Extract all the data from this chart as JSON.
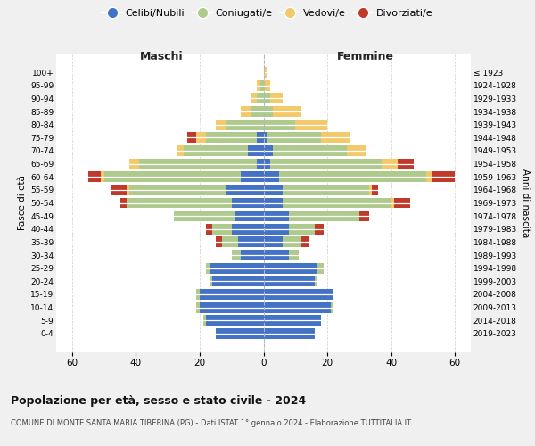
{
  "age_groups": [
    "0-4",
    "5-9",
    "10-14",
    "15-19",
    "20-24",
    "25-29",
    "30-34",
    "35-39",
    "40-44",
    "45-49",
    "50-54",
    "55-59",
    "60-64",
    "65-69",
    "70-74",
    "75-79",
    "80-84",
    "85-89",
    "90-94",
    "95-99",
    "100+"
  ],
  "birth_years": [
    "2019-2023",
    "2014-2018",
    "2009-2013",
    "2004-2008",
    "1999-2003",
    "1994-1998",
    "1989-1993",
    "1984-1988",
    "1979-1983",
    "1974-1978",
    "1969-1973",
    "1964-1968",
    "1959-1963",
    "1954-1958",
    "1949-1953",
    "1944-1948",
    "1939-1943",
    "1934-1938",
    "1929-1933",
    "1924-1928",
    "≤ 1923"
  ],
  "male": {
    "celibi": [
      15,
      18,
      20,
      20,
      16,
      17,
      7,
      8,
      10,
      9,
      10,
      12,
      7,
      2,
      5,
      2,
      0,
      0,
      0,
      0,
      0
    ],
    "coniugati": [
      0,
      1,
      1,
      1,
      1,
      1,
      3,
      5,
      6,
      19,
      33,
      30,
      43,
      37,
      20,
      16,
      12,
      4,
      2,
      1,
      0
    ],
    "vedovi": [
      0,
      0,
      0,
      0,
      0,
      0,
      0,
      0,
      0,
      0,
      0,
      1,
      1,
      3,
      2,
      3,
      3,
      3,
      2,
      1,
      0
    ],
    "divorziati": [
      0,
      0,
      0,
      0,
      0,
      0,
      0,
      2,
      2,
      0,
      2,
      5,
      4,
      0,
      0,
      3,
      0,
      0,
      0,
      0,
      0
    ]
  },
  "female": {
    "nubili": [
      16,
      18,
      21,
      22,
      16,
      17,
      8,
      6,
      8,
      8,
      6,
      6,
      5,
      2,
      3,
      1,
      0,
      0,
      0,
      0,
      0
    ],
    "coniugate": [
      0,
      0,
      1,
      0,
      1,
      2,
      3,
      6,
      8,
      22,
      34,
      27,
      46,
      35,
      23,
      17,
      10,
      3,
      2,
      0,
      0
    ],
    "vedove": [
      0,
      0,
      0,
      0,
      0,
      0,
      0,
      0,
      0,
      0,
      1,
      1,
      2,
      5,
      6,
      9,
      10,
      9,
      4,
      2,
      1
    ],
    "divorziate": [
      0,
      0,
      0,
      0,
      0,
      0,
      0,
      2,
      3,
      3,
      5,
      2,
      7,
      5,
      0,
      0,
      0,
      0,
      0,
      0,
      0
    ]
  },
  "colors": {
    "celibi": "#4472C4",
    "coniugati": "#AECA8C",
    "vedovi": "#F4C96A",
    "divorziati": "#C0392B"
  },
  "xlim": 65,
  "title": "Popolazione per età, sesso e stato civile - 2024",
  "subtitle": "COMUNE DI MONTE SANTA MARIA TIBERINA (PG) - Dati ISTAT 1° gennaio 2024 - Elaborazione TUTTITALIA.IT",
  "ylabel_left": "Fasce di età",
  "ylabel_right": "Anni di nascita",
  "xlabel_left": "Maschi",
  "xlabel_right": "Femmine",
  "bg_color": "#f0f0f0",
  "plot_bg": "#ffffff"
}
